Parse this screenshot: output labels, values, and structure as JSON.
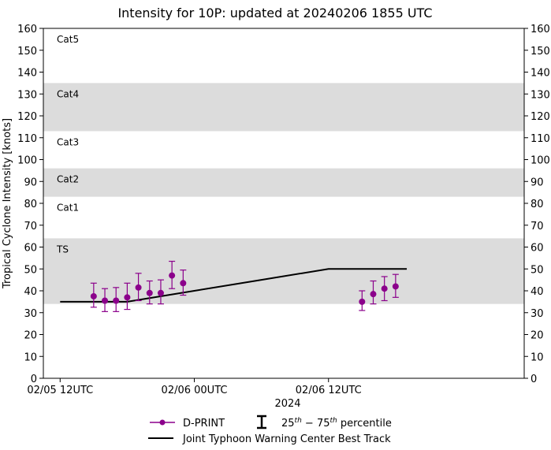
{
  "chart_data": {
    "type": "scatter",
    "title": "Intensity for 10P: updated at 20240206 1855 UTC",
    "ylabel": "Tropical Cyclone Intensity [knots]",
    "xlabel": "2024",
    "ylim": [
      0,
      160
    ],
    "xlim_hours": [
      -1.5,
      41.5
    ],
    "x_unit": "hours since 02/05 12UTC",
    "yticks": [
      0,
      10,
      20,
      30,
      40,
      50,
      60,
      70,
      80,
      90,
      100,
      110,
      120,
      130,
      140,
      150,
      160
    ],
    "xticks": [
      {
        "hours": 0,
        "label": "02/05 12UTC"
      },
      {
        "hours": 12,
        "label": "02/06 00UTC"
      },
      {
        "hours": 24,
        "label": "02/06 12UTC"
      }
    ],
    "bands": [
      {
        "label": "TS",
        "from": 34,
        "to": 64,
        "shaded": true
      },
      {
        "label": "Cat1",
        "from": 64,
        "to": 83,
        "shaded": false
      },
      {
        "label": "Cat2",
        "from": 83,
        "to": 96,
        "shaded": true
      },
      {
        "label": "Cat3",
        "from": 96,
        "to": 113,
        "shaded": false
      },
      {
        "label": "Cat4",
        "from": 113,
        "to": 135,
        "shaded": true
      },
      {
        "label": "Cat5",
        "from": 135,
        "to": 160,
        "shaded": false
      }
    ],
    "series": [
      {
        "name": "D-PRINT",
        "color": "#8b008b",
        "points": [
          {
            "x": 3.0,
            "y": 37.5,
            "lo": 32.5,
            "hi": 43.5
          },
          {
            "x": 4.0,
            "y": 35.5,
            "lo": 30.5,
            "hi": 41.0
          },
          {
            "x": 5.0,
            "y": 35.5,
            "lo": 30.5,
            "hi": 41.5
          },
          {
            "x": 6.0,
            "y": 37.0,
            "lo": 31.5,
            "hi": 43.5
          },
          {
            "x": 7.0,
            "y": 41.5,
            "lo": 35.5,
            "hi": 48.0
          },
          {
            "x": 8.0,
            "y": 39.0,
            "lo": 34.0,
            "hi": 44.5
          },
          {
            "x": 9.0,
            "y": 39.0,
            "lo": 34.0,
            "hi": 45.0
          },
          {
            "x": 10.0,
            "y": 47.0,
            "lo": 41.0,
            "hi": 53.5
          },
          {
            "x": 11.0,
            "y": 43.5,
            "lo": 38.0,
            "hi": 49.5
          },
          {
            "x": 27.0,
            "y": 35.0,
            "lo": 31.0,
            "hi": 40.0
          },
          {
            "x": 28.0,
            "y": 38.5,
            "lo": 34.0,
            "hi": 44.5
          },
          {
            "x": 29.0,
            "y": 41.0,
            "lo": 35.5,
            "hi": 46.5
          },
          {
            "x": 30.0,
            "y": 42.0,
            "lo": 37.0,
            "hi": 47.5
          }
        ]
      },
      {
        "name": "Joint Typhoon Warning Center Best Track",
        "color": "#000000",
        "x": [
          0,
          6,
          12,
          18,
          24,
          30,
          31
        ],
        "y": [
          35,
          35,
          40,
          45,
          50,
          50,
          50
        ]
      }
    ],
    "legend": {
      "placement": "bottom-center",
      "dprint_label": "D-PRINT",
      "percentile_prefix": "25",
      "percentile_sup1": "th",
      "percentile_mid": " − 75",
      "percentile_sup2": "th",
      "percentile_suffix": " percentile",
      "track_label": "Joint Typhoon Warning Center Best Track"
    }
  }
}
